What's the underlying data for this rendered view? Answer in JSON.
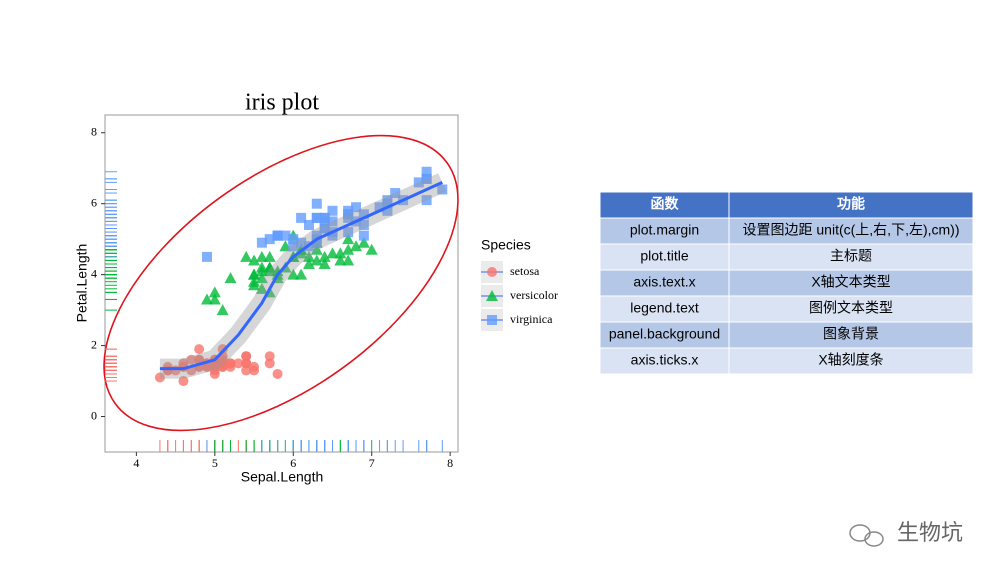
{
  "chart_data": {
    "type": "scatter",
    "title": "iris plot",
    "x_label": "Sepal.Length",
    "y_label": "Petal.Length",
    "legend_title": "Species",
    "xlim": [
      3.6,
      8.1
    ],
    "ylim": [
      -1.0,
      8.5
    ],
    "xticks": [
      4,
      5,
      6,
      7,
      8
    ],
    "yticks": [
      0,
      2,
      4,
      6,
      8
    ],
    "grid": false,
    "series": [
      {
        "name": "setosa",
        "color": "#F8766D",
        "shape": "circle",
        "x": [
          5.1,
          4.9,
          4.7,
          4.6,
          5.0,
          5.4,
          4.6,
          5.0,
          4.4,
          4.9,
          5.4,
          4.8,
          4.8,
          4.3,
          5.8,
          5.7,
          5.4,
          5.1,
          5.7,
          5.1,
          5.4,
          5.1,
          4.6,
          5.1,
          4.8,
          5.0,
          5.0,
          5.2,
          5.2,
          4.7,
          4.8,
          5.4,
          5.2,
          5.5,
          4.9,
          5.0,
          5.5,
          4.9,
          4.4,
          5.1,
          5.0,
          4.5,
          4.4,
          5.0,
          5.1,
          4.8,
          5.1,
          4.6,
          5.3,
          5.0
        ],
        "y": [
          1.4,
          1.4,
          1.3,
          1.5,
          1.4,
          1.7,
          1.4,
          1.5,
          1.4,
          1.5,
          1.5,
          1.6,
          1.4,
          1.1,
          1.2,
          1.5,
          1.3,
          1.4,
          1.7,
          1.5,
          1.7,
          1.5,
          1.0,
          1.7,
          1.9,
          1.6,
          1.6,
          1.5,
          1.4,
          1.6,
          1.6,
          1.5,
          1.5,
          1.4,
          1.5,
          1.2,
          1.3,
          1.4,
          1.3,
          1.5,
          1.3,
          1.3,
          1.3,
          1.6,
          1.9,
          1.4,
          1.6,
          1.4,
          1.5,
          1.4
        ]
      },
      {
        "name": "versicolor",
        "color": "#00BA38",
        "shape": "triangle",
        "x": [
          7.0,
          6.4,
          6.9,
          5.5,
          6.5,
          5.7,
          6.3,
          4.9,
          6.6,
          5.2,
          5.0,
          5.9,
          6.0,
          6.1,
          5.6,
          6.7,
          5.6,
          5.8,
          6.2,
          5.6,
          5.9,
          6.1,
          6.3,
          6.1,
          6.4,
          6.6,
          6.8,
          6.7,
          6.0,
          5.7,
          5.5,
          5.5,
          5.8,
          6.0,
          5.4,
          6.0,
          6.7,
          6.3,
          5.6,
          5.5,
          5.5,
          6.1,
          5.8,
          5.0,
          5.6,
          5.7,
          5.7,
          6.2,
          5.1,
          5.7
        ],
        "y": [
          4.7,
          4.5,
          4.9,
          4.0,
          4.6,
          4.5,
          4.7,
          3.3,
          4.6,
          3.9,
          3.5,
          4.2,
          4.0,
          4.7,
          3.6,
          4.4,
          4.5,
          4.1,
          4.5,
          3.9,
          4.8,
          4.0,
          4.9,
          4.7,
          4.3,
          4.4,
          4.8,
          5.0,
          4.5,
          3.5,
          3.8,
          3.7,
          3.9,
          5.1,
          4.5,
          4.5,
          4.7,
          4.4,
          4.1,
          4.0,
          4.4,
          4.6,
          4.0,
          3.3,
          4.2,
          4.2,
          4.2,
          4.3,
          3.0,
          4.1
        ]
      },
      {
        "name": "virginica",
        "color": "#619CFF",
        "shape": "square",
        "x": [
          6.3,
          5.8,
          7.1,
          6.3,
          6.5,
          7.6,
          4.9,
          7.3,
          6.7,
          7.2,
          6.5,
          6.4,
          6.8,
          5.7,
          5.8,
          6.4,
          6.5,
          7.7,
          7.7,
          6.0,
          6.9,
          5.6,
          7.7,
          6.3,
          6.7,
          7.2,
          6.2,
          6.1,
          6.4,
          7.2,
          7.4,
          7.9,
          6.4,
          6.3,
          6.1,
          7.7,
          6.3,
          6.4,
          6.0,
          6.9,
          6.7,
          6.9,
          5.8,
          6.8,
          6.7,
          6.7,
          6.3,
          6.5,
          6.2,
          5.9
        ],
        "y": [
          6.0,
          5.1,
          5.9,
          5.6,
          5.8,
          6.6,
          4.5,
          6.3,
          5.8,
          6.1,
          5.1,
          5.3,
          5.5,
          5.0,
          5.1,
          5.3,
          5.5,
          6.7,
          6.9,
          5.0,
          5.7,
          4.9,
          6.7,
          4.9,
          5.7,
          6.0,
          4.8,
          4.9,
          5.6,
          5.8,
          6.1,
          6.4,
          5.6,
          5.1,
          5.6,
          6.1,
          5.6,
          5.5,
          4.8,
          5.4,
          5.6,
          5.1,
          5.1,
          5.9,
          5.7,
          5.2,
          5.0,
          5.2,
          5.4,
          5.1
        ]
      }
    ],
    "smooth": {
      "color": "#3366FF",
      "x": [
        4.3,
        4.6,
        5.0,
        5.3,
        5.6,
        5.8,
        6.0,
        6.3,
        6.6,
        7.0,
        7.5,
        7.9
      ],
      "y": [
        1.35,
        1.35,
        1.6,
        2.3,
        3.2,
        4.0,
        4.5,
        5.0,
        5.3,
        5.7,
        6.2,
        6.6
      ]
    }
  },
  "table": {
    "header": [
      "函数",
      "功能"
    ],
    "rows": [
      [
        "plot.margin",
        "设置图边距 unit(c(上,右,下,左),cm))"
      ],
      [
        "plot.title",
        "主标题"
      ],
      [
        "axis.text.x",
        "X轴文本类型"
      ],
      [
        "legend.text",
        "图例文本类型"
      ],
      [
        "panel.background",
        "图象背景"
      ],
      [
        "axis.ticks.x",
        "X轴刻度条"
      ]
    ]
  },
  "watermark": "生物坑"
}
